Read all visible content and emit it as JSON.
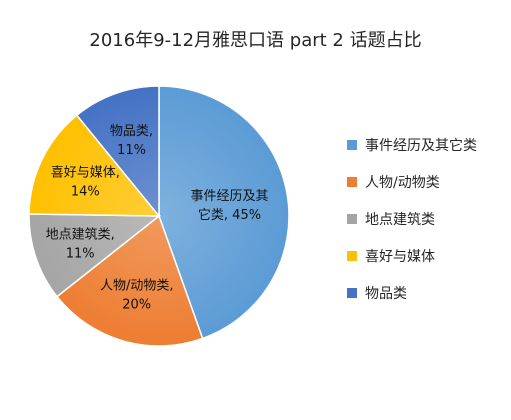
{
  "chart_data": {
    "type": "pie",
    "title": "2016年9-12月雅思口语 part 2 话题占比",
    "legend_position": "right",
    "slices": [
      {
        "category": "事件经历及其它类",
        "value": 45,
        "label_lines": [
          "事件经历及其",
          "它类, 45%"
        ],
        "color": "#5b9bd5"
      },
      {
        "category": "人物/动物类",
        "value": 20,
        "label_lines": [
          "人物/动物类,",
          "20%"
        ],
        "color": "#ed7d31"
      },
      {
        "category": "地点建筑类",
        "value": 11,
        "label_lines": [
          "地点建筑类,",
          "11%"
        ],
        "color": "#a5a5a5"
      },
      {
        "category": "喜好与媒体",
        "value": 14,
        "label_lines": [
          "喜好与媒体,",
          "14%"
        ],
        "color": "#ffc000"
      },
      {
        "category": "物品类",
        "value": 11,
        "label_lines": [
          "物品类,",
          "11%"
        ],
        "color": "#4472c4"
      }
    ]
  }
}
